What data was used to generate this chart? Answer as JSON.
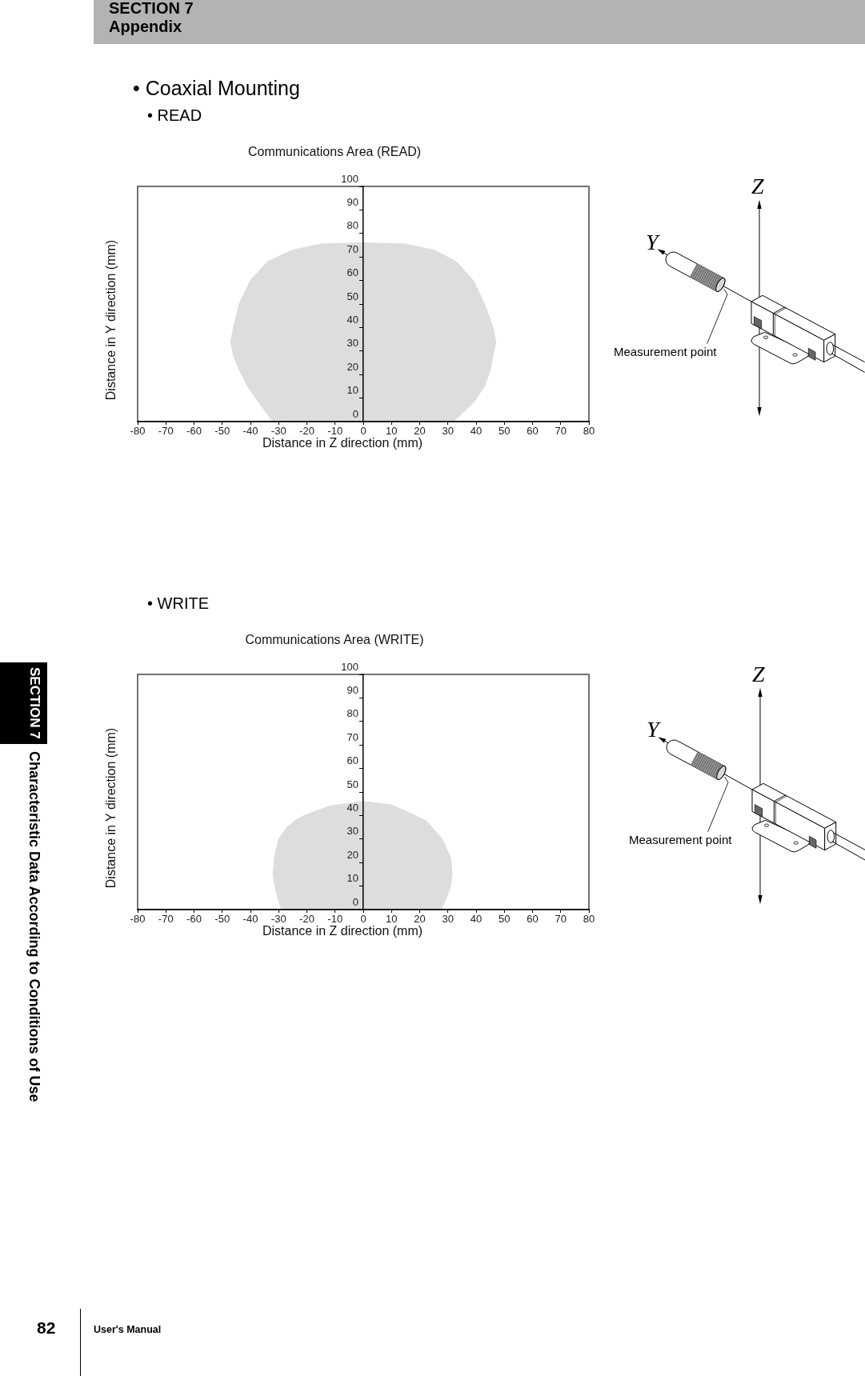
{
  "chart_data": [
    {
      "type": "area",
      "title": "Communications Area (READ)",
      "xlabel": "Distance in Z direction (mm)",
      "ylabel": "Distance in Y direction (mm)",
      "xlim": [
        -80,
        80
      ],
      "ylim": [
        0,
        100
      ],
      "xticks": [
        -80,
        -70,
        -60,
        -50,
        -40,
        -30,
        -20,
        -10,
        0,
        10,
        20,
        30,
        40,
        50,
        60,
        70,
        80
      ],
      "yticks": [
        0,
        10,
        20,
        30,
        40,
        50,
        60,
        70,
        80,
        90,
        100
      ],
      "series": [
        {
          "color": "#dddddd",
          "x": [
            -32,
            -37,
            -41,
            -44,
            -46,
            -47,
            -46,
            -44,
            -40,
            -34,
            -25,
            -15,
            0,
            15,
            25,
            33,
            39,
            43,
            46,
            47,
            46,
            45,
            43,
            39,
            32
          ],
          "values": [
            0,
            8,
            15,
            22,
            28,
            34,
            40,
            50,
            60,
            68,
            73,
            75.5,
            76,
            75.5,
            73,
            68,
            60,
            50,
            40,
            34,
            28,
            22,
            15,
            8,
            0
          ]
        }
      ],
      "annotations": [
        "SECTION 7",
        "Appendix",
        "• Coaxial Mounting",
        "• READ",
        "Z",
        "Y",
        "Measurement point",
        "SECTION 7",
        "Characteristic Data According to Conditions of Use",
        "82",
        "User's Manual"
      ]
    },
    {
      "type": "area",
      "title": "Communications Area (WRITE)",
      "xlabel": "Distance in Z direction (mm)",
      "ylabel": "Distance in Y direction (mm)",
      "xlim": [
        -80,
        80
      ],
      "ylim": [
        0,
        100
      ],
      "xticks": [
        -80,
        -70,
        -60,
        -50,
        -40,
        -30,
        -20,
        -10,
        0,
        10,
        20,
        30,
        40,
        50,
        60,
        70,
        80
      ],
      "yticks": [
        0,
        10,
        20,
        30,
        40,
        50,
        60,
        70,
        80,
        90,
        100
      ],
      "series": [
        {
          "color": "#dddddd",
          "x": [
            -29,
            -31,
            -32,
            -31.5,
            -30,
            -27,
            -24,
            -21,
            -12,
            0,
            10,
            18.5,
            22.5,
            28,
            31,
            31.5,
            31,
            29.5,
            27.5
          ],
          "values": [
            0,
            8,
            15,
            22,
            30,
            35,
            38,
            40,
            44,
            46,
            44.5,
            40,
            37.5,
            30,
            22,
            15,
            10,
            5,
            0
          ]
        }
      ],
      "annotations": [
        "• WRITE",
        "Z",
        "Y",
        "Measurement point"
      ]
    }
  ]
}
